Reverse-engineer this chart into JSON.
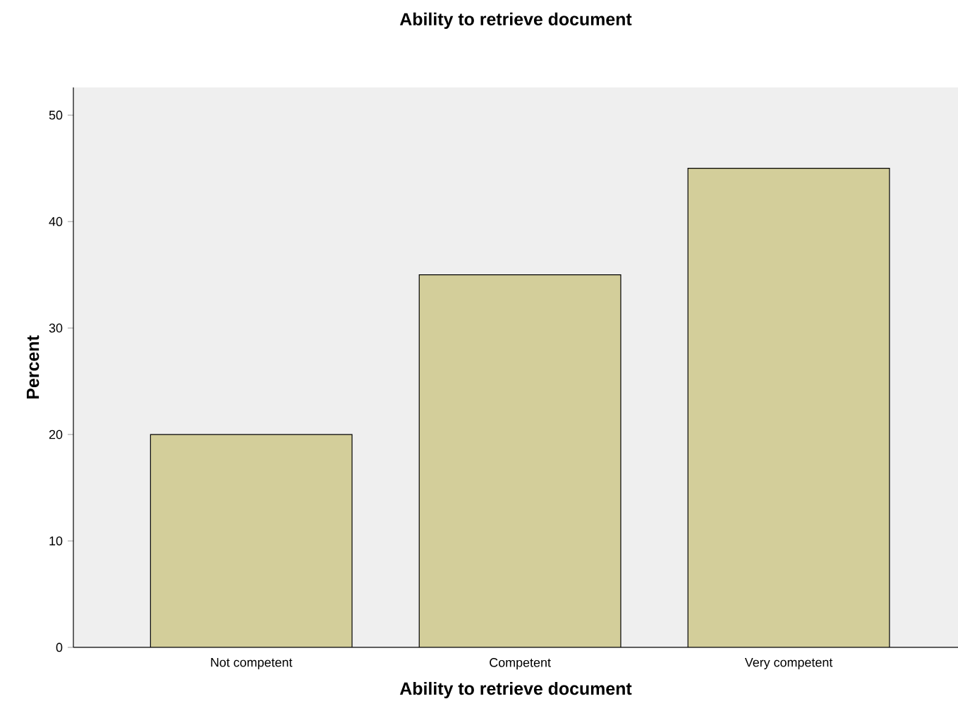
{
  "chart_data": {
    "type": "bar",
    "title": "Ability to retrieve document",
    "xlabel": "Ability to retrieve document",
    "ylabel": "Percent",
    "categories": [
      "Not competent",
      "Competent",
      "Very competent"
    ],
    "values": [
      20,
      35,
      45
    ],
    "color": "#d3ce9a",
    "ylim": [
      0,
      52.6
    ],
    "yticks": [
      0,
      10,
      20,
      30,
      40,
      50
    ],
    "grid": false
  }
}
